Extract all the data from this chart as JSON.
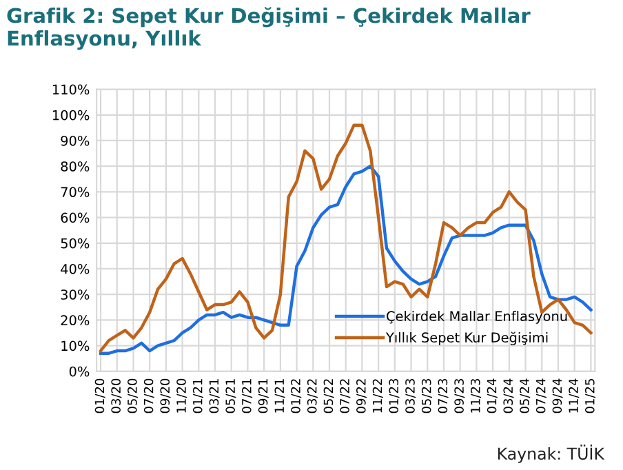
{
  "chart_data": {
    "type": "line",
    "title": "Grafik 2: Sepet Kur Değişimi – Çekirdek Mallar\nEnflasyonu, Yıllık",
    "categories": [
      "01/20",
      null,
      "03/20",
      null,
      "05/20",
      null,
      "07/20",
      null,
      "09/20",
      null,
      "11/20",
      null,
      "01/21",
      null,
      "03/21",
      null,
      "05/21",
      null,
      "07/21",
      null,
      "09/21",
      null,
      "11/21",
      null,
      "01/22",
      null,
      "03/22",
      null,
      "05/22",
      null,
      "07/22",
      null,
      "09/22",
      null,
      "11/22",
      null,
      "01/23",
      null,
      "03/23",
      null,
      "05/23",
      null,
      "07/23",
      null,
      "09/23",
      null,
      "11/23",
      null,
      "01/24",
      null,
      "03/24",
      null,
      "05/24",
      null,
      "07/24",
      null,
      "09/24",
      null,
      "11/24",
      null,
      "01/25"
    ],
    "series": [
      {
        "name": "Çekirdek Mallar Enflasyonu",
        "color": "#1f6fe0",
        "values": [
          7,
          7,
          8,
          8,
          9,
          11,
          8,
          10,
          11,
          12,
          15,
          17,
          20,
          22,
          22,
          23,
          21,
          22,
          21,
          21,
          20,
          19,
          18,
          18,
          41,
          47,
          56,
          61,
          64,
          65,
          72,
          77,
          78,
          80,
          76,
          48,
          43,
          39,
          36,
          34,
          35,
          37,
          45,
          52,
          53,
          53,
          53,
          53,
          54,
          56,
          57,
          57,
          57,
          51,
          38,
          29,
          28,
          28,
          29,
          27,
          24
        ]
      },
      {
        "name": "Yıllık Sepet Kur Değişimi",
        "color": "#c0631a",
        "values": [
          8,
          12,
          14,
          16,
          13,
          17,
          23,
          32,
          36,
          42,
          44,
          38,
          31,
          24,
          26,
          26,
          27,
          31,
          27,
          17,
          13,
          16,
          30,
          68,
          74,
          86,
          83,
          71,
          75,
          84,
          89,
          96,
          96,
          86,
          60,
          33,
          35,
          34,
          29,
          32,
          29,
          42,
          58,
          56,
          53,
          56,
          58,
          58,
          62,
          64,
          70,
          66,
          63,
          37,
          23,
          26,
          28,
          24,
          19,
          18,
          15
        ]
      }
    ],
    "ylim": [
      0,
      110
    ],
    "yticks": [
      {
        "value": 0,
        "label": "0%"
      },
      {
        "value": 10,
        "label": "10%"
      },
      {
        "value": 20,
        "label": "20%"
      },
      {
        "value": 30,
        "label": "30%"
      },
      {
        "value": 40,
        "label": "40%"
      },
      {
        "value": 50,
        "label": "50%"
      },
      {
        "value": 60,
        "label": "60%"
      },
      {
        "value": 70,
        "label": "70%"
      },
      {
        "value": 80,
        "label": "80%"
      },
      {
        "value": 90,
        "label": "90%"
      },
      {
        "value": 100,
        "label": "100%"
      },
      {
        "value": 110,
        "label": "110%"
      }
    ],
    "grid": true,
    "legend": "bottom right",
    "annotations": [
      "Kaynak: TÜİK"
    ]
  }
}
